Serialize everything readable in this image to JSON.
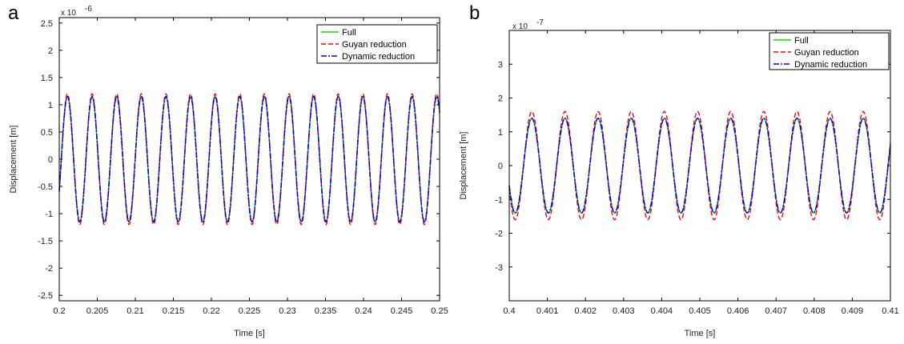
{
  "chart_data": [
    {
      "type": "line",
      "panel": "a",
      "xlabel": "Time [s]",
      "ylabel": "Displacement [m]",
      "multiplier": "x 10",
      "multiplier_exp": "-6",
      "xlim": [
        0.2,
        0.25
      ],
      "ylim": [
        -2.6e-06,
        2.6e-06
      ],
      "xticks": [
        0.2,
        0.205,
        0.21,
        0.215,
        0.22,
        0.225,
        0.23,
        0.235,
        0.24,
        0.245,
        0.25
      ],
      "xtick_labels": [
        "0.2",
        "0.205",
        "0.21",
        "0.215",
        "0.22",
        "0.225",
        "0.23",
        "0.235",
        "0.24",
        "0.245",
        "0.25"
      ],
      "yticks": [
        -2.5,
        -2,
        -1.5,
        -1,
        -0.5,
        0,
        0.5,
        1,
        1.5,
        2,
        2.5
      ],
      "ytick_labels": [
        "-2.5",
        "-2",
        "-1.5",
        "-1",
        "-0.5",
        "0",
        "0.5",
        "1",
        "1.5",
        "2",
        "2.5"
      ],
      "legend": "top-right",
      "signal": {
        "frequency_hz": 309,
        "cycles_shown": 15.5
      },
      "series": [
        {
          "name": "Full",
          "color": "#00e000",
          "style": "solid",
          "amplitude": 1.15e-06,
          "phase_deg": -30
        },
        {
          "name": "Guyan reduction",
          "color": "#ff0000",
          "style": "dashed",
          "amplitude": 1.2e-06,
          "phase_deg": -30
        },
        {
          "name": "Dynamic reduction",
          "color": "#0000ff",
          "style": "dashdot",
          "amplitude": 1.15e-06,
          "phase_deg": -30
        }
      ]
    },
    {
      "type": "line",
      "panel": "b",
      "xlabel": "Time [s]",
      "ylabel": "Displacement [m]",
      "multiplier": "x 10",
      "multiplier_exp": "-7",
      "xlim": [
        0.4,
        0.41
      ],
      "ylim": [
        -4e-07,
        4e-07
      ],
      "xticks": [
        0.4,
        0.401,
        0.402,
        0.403,
        0.404,
        0.405,
        0.406,
        0.407,
        0.408,
        0.409,
        0.41
      ],
      "xtick_labels": [
        "0.4",
        "0.401",
        "0.402",
        "0.403",
        "0.404",
        "0.405",
        "0.406",
        "0.407",
        "0.408",
        "0.409",
        "0.41"
      ],
      "yticks": [
        -3,
        -2,
        -1,
        0,
        1,
        2,
        3
      ],
      "ytick_labels": [
        "-3",
        "-2",
        "-1",
        "0",
        "1",
        "2",
        "3"
      ],
      "legend": "top-right",
      "signal": {
        "frequency_hz": 1150,
        "cycles_shown": 11.5
      },
      "series": [
        {
          "name": "Full",
          "color": "#00e000",
          "style": "solid",
          "amplitude": 1.4e-07,
          "phase_deg": 205
        },
        {
          "name": "Guyan reduction",
          "color": "#ff0000",
          "style": "dashed",
          "amplitude": 1.6e-07,
          "phase_deg": 205
        },
        {
          "name": "Dynamic reduction",
          "color": "#0000ff",
          "style": "dashdot",
          "amplitude": 1.4e-07,
          "phase_deg": 205
        }
      ]
    }
  ]
}
